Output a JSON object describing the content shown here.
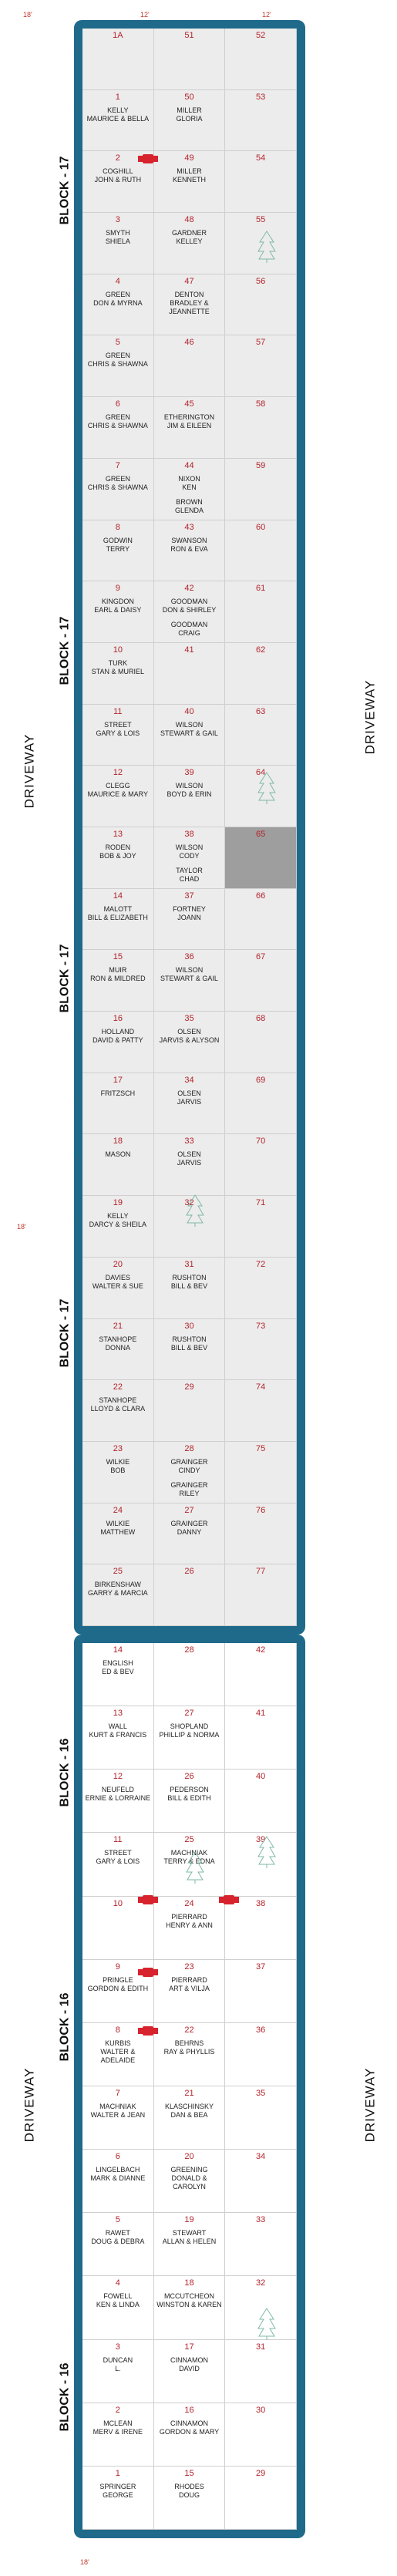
{
  "dimensions": {
    "top_left": "18'",
    "top_mid": "12'",
    "top_right": "12'",
    "side": "18'",
    "bottom": "18'"
  },
  "driveway_label": "DRIVEWAY",
  "block_labels": [
    "BLOCK - 17",
    "BLOCK - 17",
    "BLOCK - 17",
    "BLOCK - 17",
    "BLOCK - 16",
    "BLOCK - 16",
    "BLOCK - 16"
  ],
  "colors": {
    "border": "#1f6a8a",
    "plot_number": "#b3232b",
    "occupied_marker": "#d7232d",
    "shaded_plot": "#ececec",
    "reserved_plot": "#9e9e9e"
  },
  "block17": [
    {
      "a": {
        "n": "1A",
        "t": ""
      },
      "b": {
        "n": "51",
        "t": ""
      },
      "c": {
        "n": "52",
        "t": ""
      }
    },
    {
      "a": {
        "n": "1",
        "t": "KELLY\nMAURICE & BELLA"
      },
      "b": {
        "n": "50",
        "t": "MILLER\nGLORIA"
      },
      "c": {
        "n": "53",
        "t": ""
      }
    },
    {
      "a": {
        "n": "2",
        "t": "COGHILL\nJOHN & RUTH"
      },
      "b": {
        "n": "49",
        "t": "MILLER\nKENNETH"
      },
      "c": {
        "n": "54",
        "t": ""
      }
    },
    {
      "a": {
        "n": "3",
        "t": "SMYTH\nSHIELA"
      },
      "b": {
        "n": "48",
        "t": "GARDNER\nKELLEY"
      },
      "c": {
        "n": "55",
        "t": ""
      }
    },
    {
      "a": {
        "n": "4",
        "t": "GREEN\nDON & MYRNA"
      },
      "b": {
        "n": "47",
        "t": "DENTON\nBRADLEY &\nJEANNETTE"
      },
      "c": {
        "n": "56",
        "t": ""
      }
    },
    {
      "a": {
        "n": "5",
        "t": "GREEN\nCHRIS & SHAWNA"
      },
      "b": {
        "n": "46",
        "t": ""
      },
      "c": {
        "n": "57",
        "t": ""
      }
    },
    {
      "a": {
        "n": "6",
        "t": "GREEN\nCHRIS & SHAWNA"
      },
      "b": {
        "n": "45",
        "t": "ETHERINGTON\nJIM & EILEEN"
      },
      "c": {
        "n": "58",
        "t": ""
      }
    },
    {
      "a": {
        "n": "7",
        "t": "GREEN\nCHRIS & SHAWNA"
      },
      "b": {
        "n": "44",
        "t": "NIXON\nKEN\nBROWN\nGLENDA"
      },
      "c": {
        "n": "59",
        "t": ""
      }
    },
    {
      "a": {
        "n": "8",
        "t": "GODWIN\nTERRY"
      },
      "b": {
        "n": "43",
        "t": "SWANSON\nRON & EVA"
      },
      "c": {
        "n": "60",
        "t": ""
      }
    },
    {
      "a": {
        "n": "9",
        "t": "KINGDON\nEARL & DAISY"
      },
      "b": {
        "n": "42",
        "t": "GOODMAN\nDON & SHIRLEY\nGOODMAN\nCRAIG"
      },
      "c": {
        "n": "61",
        "t": ""
      }
    },
    {
      "a": {
        "n": "10",
        "t": "TURK\nSTAN & MURIEL"
      },
      "b": {
        "n": "41",
        "t": ""
      },
      "c": {
        "n": "62",
        "t": ""
      }
    },
    {
      "a": {
        "n": "11",
        "t": "STREET\nGARY & LOIS"
      },
      "b": {
        "n": "40",
        "t": "WILSON\nSTEWART & GAIL"
      },
      "c": {
        "n": "63",
        "t": ""
      }
    },
    {
      "a": {
        "n": "12",
        "t": "CLEGG\nMAURICE & MARY"
      },
      "b": {
        "n": "39",
        "t": "WILSON\nBOYD & ERIN"
      },
      "c": {
        "n": "64",
        "t": ""
      }
    },
    {
      "a": {
        "n": "13",
        "t": "RODEN\nBOB & JOY"
      },
      "b": {
        "n": "38",
        "t": "WILSON\nCODY\nTAYLOR\nCHAD"
      },
      "c": {
        "n": "65",
        "t": ""
      }
    },
    {
      "a": {
        "n": "14",
        "t": "MALOTT\nBILL & ELIZABETH"
      },
      "b": {
        "n": "37",
        "t": "FORTNEY\nJOANN"
      },
      "c": {
        "n": "66",
        "t": ""
      }
    },
    {
      "a": {
        "n": "15",
        "t": "MUIR\nRON & MILDRED"
      },
      "b": {
        "n": "36",
        "t": "WILSON\nSTEWART & GAIL"
      },
      "c": {
        "n": "67",
        "t": ""
      }
    },
    {
      "a": {
        "n": "16",
        "t": "HOLLAND\nDAVID & PATTY"
      },
      "b": {
        "n": "35",
        "t": "OLSEN\nJARVIS & ALYSON"
      },
      "c": {
        "n": "68",
        "t": ""
      }
    },
    {
      "a": {
        "n": "17",
        "t": "FRITZSCH"
      },
      "b": {
        "n": "34",
        "t": "OLSEN\nJARVIS"
      },
      "c": {
        "n": "69",
        "t": ""
      }
    },
    {
      "a": {
        "n": "18",
        "t": "MASON"
      },
      "b": {
        "n": "33",
        "t": "OLSEN\nJARVIS"
      },
      "c": {
        "n": "70",
        "t": ""
      }
    },
    {
      "a": {
        "n": "19",
        "t": "KELLY\nDARCY & SHEILA"
      },
      "b": {
        "n": "32",
        "t": ""
      },
      "c": {
        "n": "71",
        "t": ""
      }
    },
    {
      "a": {
        "n": "20",
        "t": "DAVIES\nWALTER & SUE"
      },
      "b": {
        "n": "31",
        "t": "RUSHTON\nBILL & BEV"
      },
      "c": {
        "n": "72",
        "t": ""
      }
    },
    {
      "a": {
        "n": "21",
        "t": "STANHOPE\nDONNA"
      },
      "b": {
        "n": "30",
        "t": "RUSHTON\nBILL & BEV"
      },
      "c": {
        "n": "73",
        "t": ""
      }
    },
    {
      "a": {
        "n": "22",
        "t": "STANHOPE\nLLOYD & CLARA"
      },
      "b": {
        "n": "29",
        "t": ""
      },
      "c": {
        "n": "74",
        "t": ""
      }
    },
    {
      "a": {
        "n": "23",
        "t": "WILKIE\nBOB"
      },
      "b": {
        "n": "28",
        "t": "GRAINGER\nCINDY\nGRAINGER\nRILEY"
      },
      "c": {
        "n": "75",
        "t": ""
      }
    },
    {
      "a": {
        "n": "24",
        "t": "WILKIE\nMATTHEW"
      },
      "b": {
        "n": "27",
        "t": "GRAINGER\nDANNY"
      },
      "c": {
        "n": "76",
        "t": ""
      }
    },
    {
      "a": {
        "n": "25",
        "t": "BIRKENSHAW\nGARRY & MARCIA"
      },
      "b": {
        "n": "26",
        "t": ""
      },
      "c": {
        "n": "77",
        "t": ""
      }
    }
  ],
  "block16": [
    {
      "a": {
        "n": "14",
        "t": "ENGLISH\nED & BEV"
      },
      "b": {
        "n": "28",
        "t": ""
      },
      "c": {
        "n": "42",
        "t": ""
      }
    },
    {
      "a": {
        "n": "13",
        "t": "WALL\nKURT & FRANCIS"
      },
      "b": {
        "n": "27",
        "t": "Shopland\nPhillip & Norma"
      },
      "c": {
        "n": "41",
        "t": ""
      }
    },
    {
      "a": {
        "n": "12",
        "t": "NEUFELD\nERNIE & LORRAINE"
      },
      "b": {
        "n": "26",
        "t": "PEDERSON\nBILL & EDITH"
      },
      "c": {
        "n": "40",
        "t": ""
      }
    },
    {
      "a": {
        "n": "11",
        "t": "STREET\nGARY & LOIS"
      },
      "b": {
        "n": "25",
        "t": "MACHNIAK\nTERRY & EDNA"
      },
      "c": {
        "n": "39",
        "t": ""
      }
    },
    {
      "a": {
        "n": "10",
        "t": ""
      },
      "b": {
        "n": "24",
        "t": "PIERRARD\nHENRY & ANN"
      },
      "c": {
        "n": "38",
        "t": ""
      }
    },
    {
      "a": {
        "n": "9",
        "t": "PRINGLE\nGORDON & EDITH"
      },
      "b": {
        "n": "23",
        "t": "PIERRARD\nART & VILJA"
      },
      "c": {
        "n": "37",
        "t": ""
      }
    },
    {
      "a": {
        "n": "8",
        "t": "KURBIS\nWALTER &\nADELAIDE"
      },
      "b": {
        "n": "22",
        "t": "BEHRNS\nRAY & PHYLLIS"
      },
      "c": {
        "n": "36",
        "t": ""
      }
    },
    {
      "a": {
        "n": "7",
        "t": "MACHNIAK\nWALTER & JEAN"
      },
      "b": {
        "n": "21",
        "t": "KLASCHINSKY\nDAN & BEA"
      },
      "c": {
        "n": "35",
        "t": ""
      }
    },
    {
      "a": {
        "n": "6",
        "t": "LINGELBACH\nMARK & DIANNE"
      },
      "b": {
        "n": "20",
        "t": "GREENING\nDONALD &\nCAROLYN"
      },
      "c": {
        "n": "34",
        "t": ""
      }
    },
    {
      "a": {
        "n": "5",
        "t": "RAWET\nDOUG & DEBRA"
      },
      "b": {
        "n": "19",
        "t": "STEWART\nALLAN & HELEN"
      },
      "c": {
        "n": "33",
        "t": ""
      }
    },
    {
      "a": {
        "n": "4",
        "t": "FOWELL\nKEN & LINDA"
      },
      "b": {
        "n": "18",
        "t": "McCUTCHEON\nWINSTON & KAREN"
      },
      "c": {
        "n": "32",
        "t": ""
      }
    },
    {
      "a": {
        "n": "3",
        "t": "DUNCAN\nL."
      },
      "b": {
        "n": "17",
        "t": "CINNAMON\nDAVID"
      },
      "c": {
        "n": "31",
        "t": ""
      }
    },
    {
      "a": {
        "n": "2",
        "t": "McLEAN\nMERV & IRENE"
      },
      "b": {
        "n": "16",
        "t": "CINNAMON\nGORDON & MARY"
      },
      "c": {
        "n": "30",
        "t": ""
      }
    },
    {
      "a": {
        "n": "1",
        "t": "SPRINGER\nGEORGE"
      },
      "b": {
        "n": "15",
        "t": "RHODES\nDOUG"
      },
      "c": {
        "n": "29",
        "t": ""
      }
    }
  ]
}
